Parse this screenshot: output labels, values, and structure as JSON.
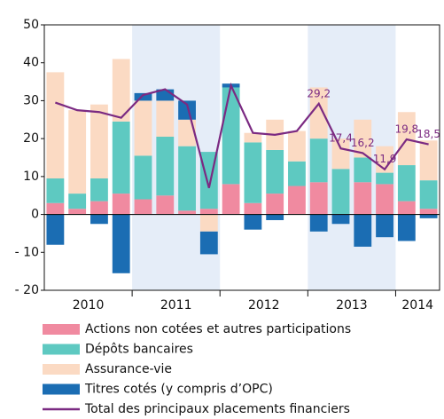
{
  "chart_data": {
    "type": "bar",
    "categories": [
      null,
      null,
      null,
      null,
      null,
      null,
      null,
      null,
      null,
      null,
      null,
      null,
      null,
      null,
      null,
      null,
      null,
      null
    ],
    "groups": [
      {
        "label": "2010",
        "count": 4
      },
      {
        "label": "2011",
        "count": 4
      },
      {
        "label": "2012",
        "count": 4
      },
      {
        "label": "2013",
        "count": 4
      },
      {
        "label": "2014",
        "count": 2
      }
    ],
    "series": [
      {
        "name": "Actions non cotées et autres participations",
        "color": "#f08aa0",
        "values": [
          3,
          1.5,
          3.5,
          5.5,
          4,
          5,
          1,
          1.5,
          8,
          3,
          5.5,
          7.5,
          8.5,
          0,
          8.5,
          8,
          3.5,
          1.5
        ]
      },
      {
        "name": "Dépôts bancaires",
        "color": "#5ec9c1",
        "values": [
          6.5,
          4,
          6,
          19,
          11.5,
          15.5,
          17,
          15,
          25.5,
          16,
          11.5,
          6.5,
          11.5,
          12,
          6.5,
          3,
          9.5,
          7.5
        ]
      },
      {
        "name": "Assurance-vie",
        "color": "#fbdac3",
        "values": [
          28,
          22,
          19.5,
          16.5,
          14.5,
          9.5,
          7,
          -4.5,
          0,
          2.5,
          8,
          8,
          13.5,
          8,
          10,
          7,
          14,
          10.5
        ]
      },
      {
        "name": "Titres cotés (y compris d’OPC)",
        "color": "#1b6db3",
        "values": [
          -8,
          0,
          -2.5,
          -15.5,
          2,
          3,
          5,
          -6,
          1,
          -4,
          -1.5,
          0,
          -4.5,
          -2.5,
          -8.5,
          -6,
          -7,
          -1
        ]
      },
      {
        "name": "Total des principaux placements financiers",
        "color": "#7b2a82",
        "type": "line",
        "values": [
          29.5,
          27.5,
          27,
          25.5,
          31.5,
          33,
          29,
          7,
          34,
          21.5,
          21,
          22,
          29.2,
          17.4,
          16.2,
          11.9,
          19.8,
          18.5
        ],
        "value_labels": [
          null,
          null,
          null,
          null,
          null,
          null,
          null,
          null,
          null,
          null,
          null,
          null,
          "29,2",
          "17,4",
          "16,2",
          "11,9",
          "19,8",
          "18,5"
        ]
      }
    ],
    "ylim": [
      -20,
      50
    ],
    "yticks": [
      {
        "value": -20,
        "label": "- 20"
      },
      {
        "value": -10,
        "label": "- 10"
      },
      0,
      10,
      20,
      30,
      40,
      50
    ]
  }
}
